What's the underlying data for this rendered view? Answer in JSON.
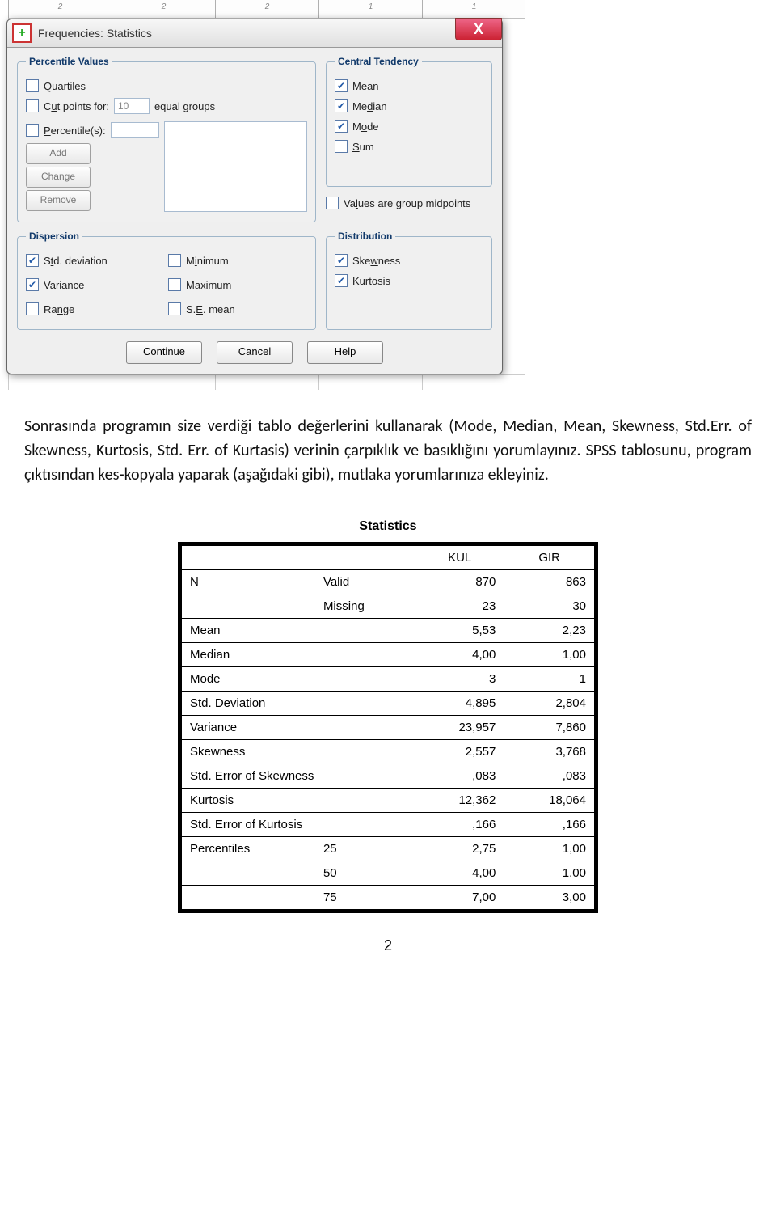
{
  "dialog": {
    "title": "Frequencies: Statistics",
    "close_glyph": "X",
    "groups": {
      "percentile": {
        "legend": "Percentile Values",
        "quartiles": "Quartiles",
        "cut_prefix": "Cut points for:",
        "cut_value": "10",
        "cut_suffix": "equal groups",
        "percentiles": "Percentile(s):",
        "add": "Add",
        "change": "Change",
        "remove": "Remove"
      },
      "central": {
        "legend": "Central Tendency",
        "mean": "Mean",
        "median": "Median",
        "mode": "Mode",
        "sum": "Sum",
        "midpoints": "Values are group midpoints"
      },
      "dispersion": {
        "legend": "Dispersion",
        "std": "Std. deviation",
        "variance": "Variance",
        "range": "Range",
        "min": "Minimum",
        "max": "Maximum",
        "se": "S.E. mean"
      },
      "distribution": {
        "legend": "Distribution",
        "skew": "Skewness",
        "kurt": "Kurtosis"
      }
    },
    "buttons": {
      "continue": "Continue",
      "cancel": "Cancel",
      "help": "Help"
    }
  },
  "paragraph": "Sonrasında programın size verdiği tablo değerlerini kullanarak (Mode, Median, Mean, Skewness, Std.Err. of Skewness, Kurtosis, Std. Err. of Kurtasis) verinin çarpıklık ve basıklığını yorumlayınız. SPSS tablosunu, program çıktısından kes-kopyala yaparak (aşağıdaki gibi), mutlaka yorumlarınıza ekleyiniz.",
  "stats": {
    "title": "Statistics",
    "col1": "KUL",
    "col2": "GIR",
    "rows": [
      {
        "l1": "N",
        "l2": "Valid",
        "v1": "870",
        "v2": "863"
      },
      {
        "l1": "",
        "l2": "Missing",
        "v1": "23",
        "v2": "30"
      },
      {
        "l1": "Mean",
        "l2": "",
        "v1": "5,53",
        "v2": "2,23"
      },
      {
        "l1": "Median",
        "l2": "",
        "v1": "4,00",
        "v2": "1,00"
      },
      {
        "l1": "Mode",
        "l2": "",
        "v1": "3",
        "v2": "1"
      },
      {
        "l1": "Std. Deviation",
        "l2": "",
        "v1": "4,895",
        "v2": "2,804"
      },
      {
        "l1": "Variance",
        "l2": "",
        "v1": "23,957",
        "v2": "7,860"
      },
      {
        "l1": "Skewness",
        "l2": "",
        "v1": "2,557",
        "v2": "3,768"
      },
      {
        "l1": "Std. Error of Skewness",
        "l2": "",
        "v1": ",083",
        "v2": ",083"
      },
      {
        "l1": "Kurtosis",
        "l2": "",
        "v1": "12,362",
        "v2": "18,064"
      },
      {
        "l1": "Std. Error of Kurtosis",
        "l2": "",
        "v1": ",166",
        "v2": ",166"
      },
      {
        "l1": "Percentiles",
        "l2": "25",
        "v1": "2,75",
        "v2": "1,00"
      },
      {
        "l1": "",
        "l2": "50",
        "v1": "4,00",
        "v2": "1,00"
      },
      {
        "l1": "",
        "l2": "75",
        "v1": "7,00",
        "v2": "3,00"
      }
    ]
  },
  "page_num": "2",
  "ruler_marks": {
    "a": "2",
    "b": "2",
    "c": "2",
    "d": "1",
    "e": "1"
  }
}
